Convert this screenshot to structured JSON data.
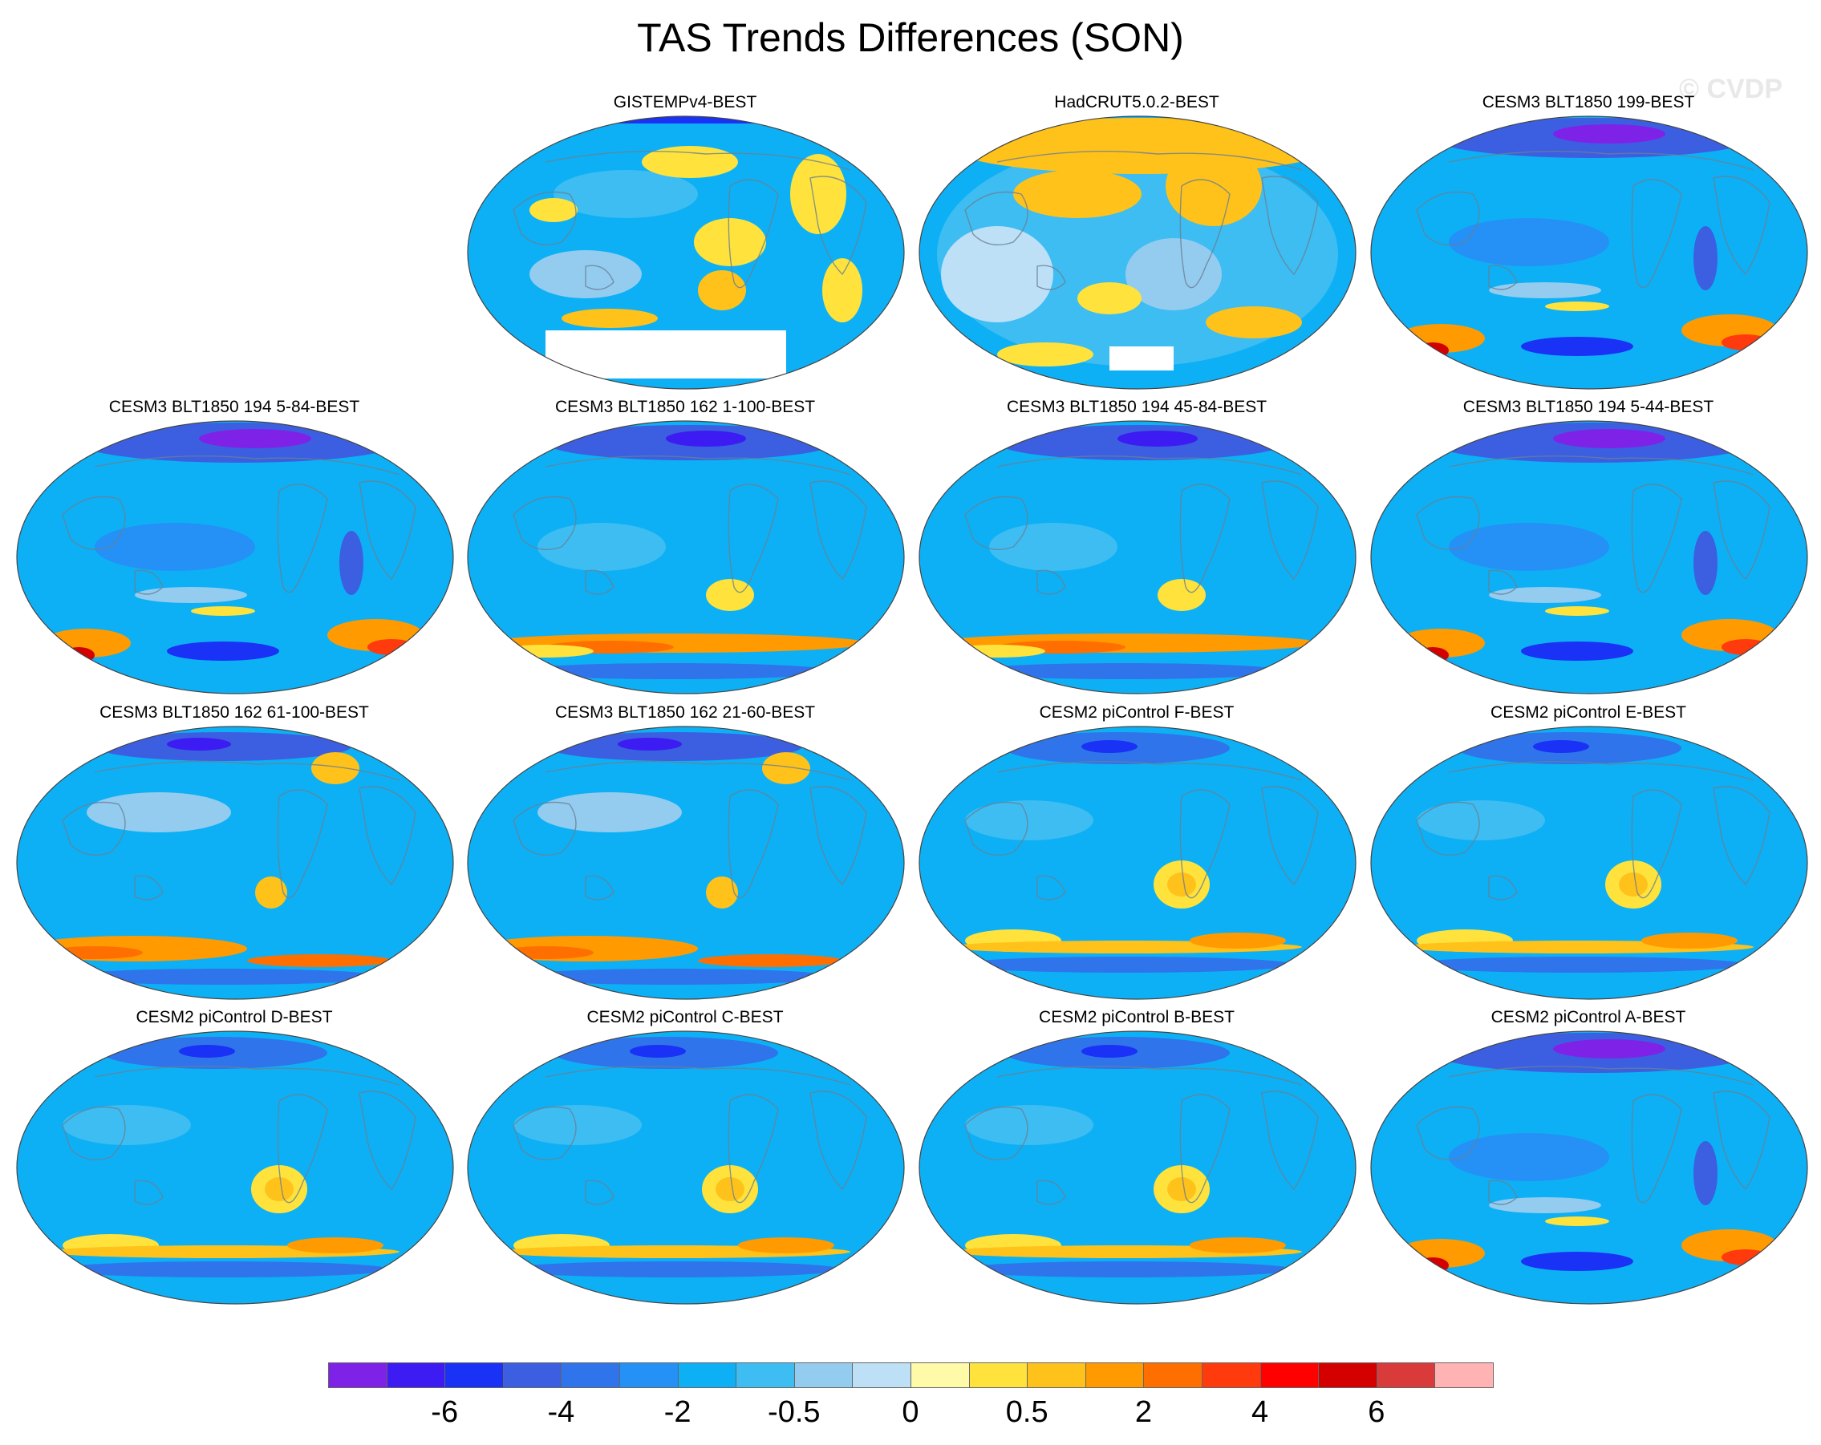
{
  "title": "TAS Trends Differences (SON)",
  "watermark": "© CVDP",
  "panels": [
    {
      "title": "GISTEMPv4-BEST",
      "variant": "obs1"
    },
    {
      "title": "HadCRUT5.0.2-BEST",
      "variant": "obs2"
    },
    {
      "title": "CESM3 BLT1850 199-BEST",
      "variant": "cesm3"
    },
    {
      "title": "CESM3 BLT1850 194 5-84-BEST",
      "variant": "cesm3"
    },
    {
      "title": "CESM3 BLT1850 162 1-100-BEST",
      "variant": "cesm3b"
    },
    {
      "title": "CESM3 BLT1850 194 45-84-BEST",
      "variant": "cesm3b"
    },
    {
      "title": "CESM3 BLT1850 194 5-44-BEST",
      "variant": "cesm3"
    },
    {
      "title": "CESM3 BLT1850 162 61-100-BEST",
      "variant": "cesm3c"
    },
    {
      "title": "CESM3 BLT1850 162 21-60-BEST",
      "variant": "cesm3c"
    },
    {
      "title": "CESM2 piControl F-BEST",
      "variant": "cesm2"
    },
    {
      "title": "CESM2 piControl E-BEST",
      "variant": "cesm2"
    },
    {
      "title": "CESM2 piControl D-BEST",
      "variant": "cesm2"
    },
    {
      "title": "CESM2 piControl C-BEST",
      "variant": "cesm2"
    },
    {
      "title": "CESM2 piControl B-BEST",
      "variant": "cesm2"
    },
    {
      "title": "CESM2 piControl A-BEST",
      "variant": "cesm3"
    }
  ],
  "colorbar": {
    "colors": [
      "#7f22e8",
      "#3c1cf2",
      "#1a32f5",
      "#3b5fe0",
      "#2f74ea",
      "#2590f5",
      "#0db0f5",
      "#3dbdf2",
      "#94ccf0",
      "#bde0f7",
      "#fffaa8",
      "#ffe33c",
      "#ffc21a",
      "#ff9a00",
      "#ff6f00",
      "#ff3a0d",
      "#ff0000",
      "#d40000",
      "#d93a3a",
      "#ffb3b3"
    ],
    "tick_labels": [
      "-6",
      "-4",
      "-2",
      "-0.5",
      "0",
      "0.5",
      "2",
      "4",
      "6"
    ],
    "tick_boundaries": [
      2,
      4,
      6,
      8,
      10,
      12,
      14,
      16,
      18
    ]
  }
}
